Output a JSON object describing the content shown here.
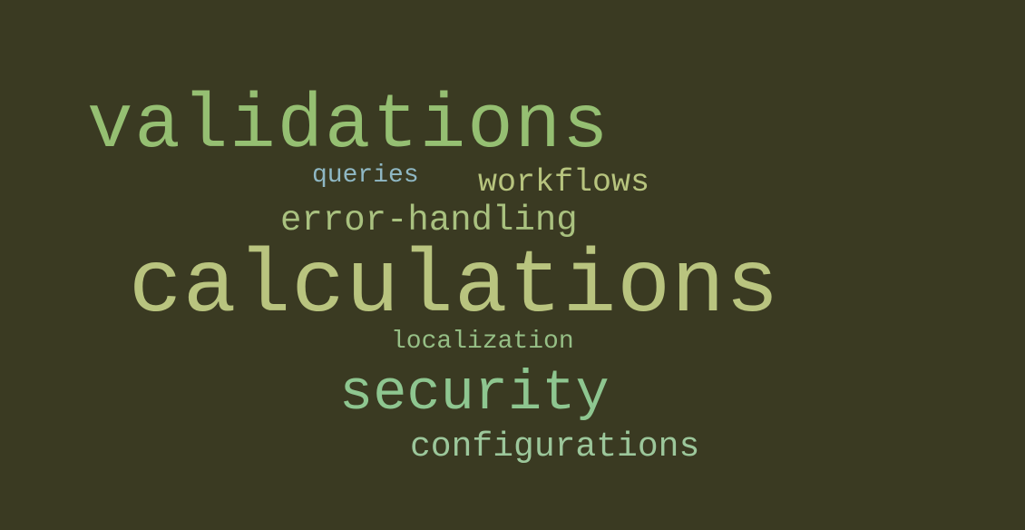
{
  "background_color": "#3a3a22",
  "words": [
    {
      "text": "validations",
      "color": "#95bf72"
    },
    {
      "text": "queries",
      "color": "#8fb8c4"
    },
    {
      "text": "workflows",
      "color": "#b7c47e"
    },
    {
      "text": "error-handling",
      "color": "#a9c17f"
    },
    {
      "text": "calculations",
      "color": "#b9c47f"
    },
    {
      "text": "localization",
      "color": "#96bf86"
    },
    {
      "text": "security",
      "color": "#8ec690"
    },
    {
      "text": "configurations",
      "color": "#9cc79b"
    }
  ]
}
